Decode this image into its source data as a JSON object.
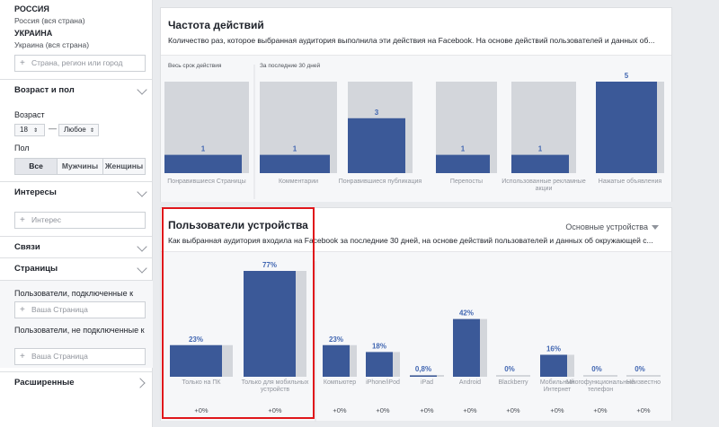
{
  "sidebar": {
    "locations": [
      {
        "country": "РОССИЯ",
        "sub": "Россия (вся страна)"
      },
      {
        "country": "УКРАИНА",
        "sub": "Украина (вся страна)"
      }
    ],
    "location_placeholder": "Страна, регион или город",
    "age_gender": {
      "title": "Возраст и пол",
      "age_label": "Возраст",
      "age_from": "18",
      "age_dash": "—",
      "age_to": "Любое",
      "gender_label": "Пол",
      "genders": [
        "Все",
        "Мужчины",
        "Женщины"
      ],
      "gender_selected": "Все"
    },
    "interests": {
      "title": "Интересы",
      "placeholder": "Интерес"
    },
    "connections": {
      "title": "Связи"
    },
    "pages": {
      "title": "Страницы",
      "connected_label": "Пользователи, подключенные к",
      "connected_placeholder": "Ваша Страница",
      "not_connected_label": "Пользователи, не подключенные к",
      "not_connected_placeholder": "Ваша Страница"
    },
    "advanced": {
      "title": "Расширенные"
    }
  },
  "activity_card": {
    "title": "Частота действий",
    "subtitle": "Количество раз, которое выбранная аудитория выполнила эти действия на Facebook. На основе действий пользователей и данных об...",
    "lifetime_label": "Весь срок действия",
    "last30_label": "За последние 30 дней"
  },
  "devices_card": {
    "title": "Пользователи устройства",
    "subtitle": "Как выбранная аудитория входила на Facebook за последние 30 дней, на основе действий пользователей и данных об окружающей с...",
    "selector": "Основные устройства"
  },
  "chart_data": [
    {
      "type": "bar",
      "title": "Частота действий",
      "groups": [
        {
          "label": "Весь срок действия",
          "categories": [
            "Понравившиеся Страницы"
          ],
          "values": [
            1
          ],
          "value_labels": [
            "1"
          ]
        },
        {
          "label": "За последние 30 дней",
          "categories": [
            "Комментарии",
            "Понравившиеся публикация",
            "Перепосты",
            "Использованные рекламные акции",
            "Нажатые объявления"
          ],
          "values": [
            1,
            3,
            1,
            1,
            5
          ],
          "value_labels": [
            "1",
            "3",
            "1",
            "1",
            "5"
          ]
        }
      ],
      "ylim": [
        0,
        5
      ]
    },
    {
      "type": "bar",
      "title": "Пользователи устройства",
      "groups": [
        {
          "categories": [
            "Только на ПК",
            "Только для мобильных устройств"
          ],
          "values": [
            23,
            77
          ],
          "value_labels": [
            "23%",
            "77%"
          ],
          "deltas": [
            "+0%",
            "+0%"
          ]
        },
        {
          "categories": [
            "Компьютер",
            "iPhone/iPod",
            "iPad",
            "Android",
            "Blackberry",
            "Мобильный Интернет",
            "Многофункциональный телефон",
            "Неизвестно"
          ],
          "values": [
            23,
            18,
            0.8,
            42,
            0,
            16,
            0,
            0
          ],
          "value_labels": [
            "23%",
            "18%",
            "0,8%",
            "42%",
            "0%",
            "16%",
            "0%",
            "0%"
          ],
          "deltas": [
            "+0%",
            "+0%",
            "+0%",
            "+0%",
            "+0%",
            "+0%",
            "+0%",
            "+0%"
          ]
        }
      ],
      "ylim": [
        0,
        77
      ]
    }
  ],
  "colors": {
    "bar": "#3b5998",
    "bar_bg": "#d3d6db",
    "value_label": "#4267b2",
    "highlight": "#e0161b"
  }
}
